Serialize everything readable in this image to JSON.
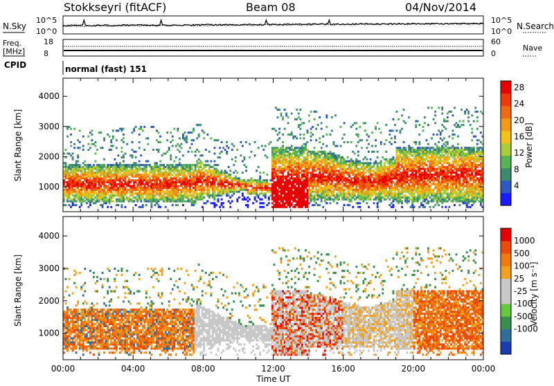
{
  "header": {
    "station": "Stokkseyri (fitACF)",
    "beam": "Beam 08",
    "date": "04/Nov/2014"
  },
  "strip": {
    "nsky_label": "N.Sky",
    "nsearch_label": "N.Search",
    "nsky_ticks": [
      "10^5",
      "10^0"
    ],
    "nsearch_ticks": [
      "10^5",
      "10^0"
    ],
    "freq_label_1": "Freq.",
    "freq_label_2": "[MHz]",
    "freq_ticks": [
      "18",
      "8"
    ],
    "nave_label": "Nave",
    "nave_ticks": [
      "60",
      "0"
    ],
    "cpid_label": "CPID",
    "cpid_value": "normal (fast) 151"
  },
  "chart_data": [
    {
      "type": "heatmap",
      "name": "power",
      "ylabel": "Slant Range [km]",
      "xlabel": "Time UT",
      "x_ticks": [
        "00:00",
        "04:00",
        "08:00",
        "12:00",
        "16:00",
        "20:00",
        "00:00"
      ],
      "y_ticks": [
        1000,
        2000,
        3000,
        4000
      ],
      "ylim": [
        180,
        4600
      ],
      "xlim_hours": [
        0,
        24
      ],
      "colorbar": {
        "title": "Power [dB]",
        "tick_labels": [
          "4",
          "8",
          "12",
          "16",
          "20",
          "24",
          "28"
        ],
        "colors": [
          "#1a1aff",
          "#2f59bf",
          "#3d8a6f",
          "#58b355",
          "#a8cc3a",
          "#f2c318",
          "#f29a18",
          "#f06a10",
          "#ee3a0a",
          "#e80000"
        ]
      }
    },
    {
      "type": "heatmap",
      "name": "velocity",
      "ylabel": "Slant Range [km]",
      "xlabel": "Time UT",
      "x_ticks": [
        "00:00",
        "04:00",
        "08:00",
        "12:00",
        "16:00",
        "20:00",
        "00:00"
      ],
      "y_ticks": [
        1000,
        2000,
        3000,
        4000
      ],
      "ylim": [
        180,
        4600
      ],
      "xlim_hours": [
        0,
        24
      ],
      "colorbar": {
        "title": "Velocity [m s⁻¹]",
        "tick_labels": [
          "1000",
          "500",
          "100",
          "25",
          "-25",
          "-100",
          "-500",
          "-1000"
        ],
        "colors": [
          "#1a3eb0",
          "#2f6f9a",
          "#3a8f4e",
          "#66c840",
          "#c8c8c8",
          "#c8c8c8",
          "#f2a020",
          "#ee7a12",
          "#ea4a0a",
          "#e60000"
        ]
      }
    }
  ],
  "time_axis": {
    "label": "Time UT"
  }
}
